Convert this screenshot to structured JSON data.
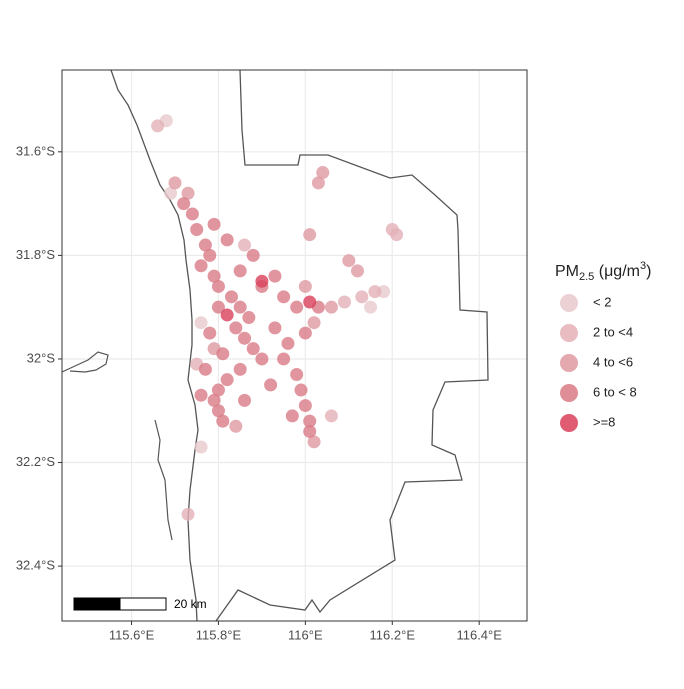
{
  "chart_data": {
    "type": "scatter",
    "legend_title": {
      "main": "PM",
      "sub": "2.5",
      "mid": " (μg/m",
      "sup": "3",
      "end": ")"
    },
    "scale_bar": "20 km",
    "xlim": [
      115.44,
      116.51
    ],
    "ylim": [
      -32.506,
      -31.442
    ],
    "xticks": [
      {
        "value": 115.6,
        "label": "115.6°E"
      },
      {
        "value": 115.8,
        "label": "115.8°E"
      },
      {
        "value": 116.0,
        "label": "116°E"
      },
      {
        "value": 116.2,
        "label": "116.2°E"
      },
      {
        "value": 116.4,
        "label": "116.4°E"
      }
    ],
    "yticks": [
      {
        "value": -31.6,
        "label": "31.6°S"
      },
      {
        "value": -31.8,
        "label": "31.8°S"
      },
      {
        "value": -32.0,
        "label": "32°S"
      },
      {
        "value": -32.2,
        "label": "32.2°S"
      },
      {
        "value": -32.4,
        "label": "32.4°S"
      }
    ],
    "grid": true,
    "series": [
      {
        "name": "< 2",
        "color": "#e9c9cd",
        "x": [
          115.68,
          115.69,
          116.18,
          116.15,
          115.76,
          115.76
        ],
        "y": [
          -31.54,
          -31.68,
          -31.87,
          -31.9,
          -32.17,
          -31.93
        ]
      },
      {
        "name": "2 to <4",
        "color": "#e4b0b6",
        "x": [
          115.66,
          116.2,
          116.21,
          116.13,
          116.16,
          116.09,
          115.75,
          116.06,
          115.86,
          115.73
        ],
        "y": [
          -31.55,
          -31.75,
          -31.76,
          -31.88,
          -31.87,
          -31.89,
          -32.01,
          -32.11,
          -31.78,
          -32.3
        ]
      },
      {
        "name": "4 to <6",
        "color": "#df99a1",
        "x": [
          115.73,
          115.7,
          116.1,
          116.12,
          116.01,
          116.03,
          116.04,
          116.06,
          115.84,
          116.02,
          116.0,
          115.79,
          116.02
        ],
        "y": [
          -31.68,
          -31.66,
          -31.81,
          -31.83,
          -31.76,
          -31.66,
          -31.64,
          -31.9,
          -32.13,
          -31.93,
          -31.86,
          -31.98,
          -32.16
        ]
      },
      {
        "name": "6 to < 8",
        "color": "#d97a86",
        "x": [
          115.72,
          115.74,
          115.75,
          115.77,
          115.78,
          115.76,
          115.79,
          115.8,
          115.83,
          115.85,
          115.87,
          115.84,
          115.86,
          115.88,
          115.9,
          115.85,
          115.82,
          115.8,
          115.79,
          115.8,
          115.81,
          115.9,
          115.95,
          115.98,
          115.93,
          115.96,
          115.95,
          115.98,
          115.99,
          116.0,
          116.01,
          116.01,
          115.88,
          115.85,
          115.8,
          115.78,
          115.77,
          115.76,
          115.82,
          115.93,
          116.03,
          116.0,
          115.92,
          115.86,
          115.79,
          115.97,
          115.81
        ],
        "y": [
          -31.7,
          -31.72,
          -31.75,
          -31.78,
          -31.8,
          -31.82,
          -31.84,
          -31.86,
          -31.88,
          -31.9,
          -31.92,
          -31.94,
          -31.96,
          -31.98,
          -32.0,
          -32.02,
          -32.04,
          -32.06,
          -32.08,
          -32.1,
          -32.12,
          -31.86,
          -31.88,
          -31.9,
          -31.94,
          -31.97,
          -32.0,
          -32.03,
          -32.06,
          -32.09,
          -32.12,
          -32.14,
          -31.8,
          -31.83,
          -31.9,
          -31.95,
          -32.02,
          -32.07,
          -31.77,
          -31.84,
          -31.9,
          -31.95,
          -32.05,
          -32.08,
          -31.74,
          -32.11,
          -31.99
        ]
      },
      {
        "name": ">=8",
        "color": "#d9405a",
        "x": [
          115.9,
          115.82,
          116.01
        ],
        "y": [
          -31.85,
          -31.915,
          -31.89
        ]
      }
    ]
  }
}
